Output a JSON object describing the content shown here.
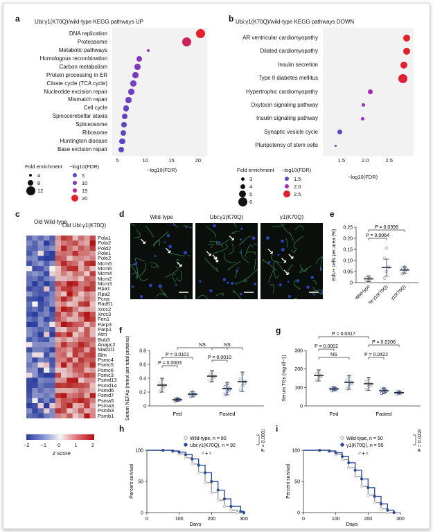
{
  "panels": {
    "a": "a",
    "b": "b",
    "c": "c",
    "d": "d",
    "e": "e",
    "f": "f",
    "g": "g",
    "h": "h",
    "i": "i"
  },
  "chart_data": [
    {
      "id": "a",
      "type": "scatter",
      "title": "Ubi:γ1(K70Q)/wild-type KEGG pathways UP",
      "xlabel": "−log10(FDR)",
      "xticks": [
        "5",
        "10",
        "15",
        "20"
      ],
      "xlim": [
        3.5,
        21.5
      ],
      "categories": [
        "DNA replication",
        "Proteasome",
        "Metabolic pathways",
        "Homologous recombination",
        "Carbon metabolism",
        "Protein processing in ER",
        "Citrate cycle (TCA cycle)",
        "Nucleotide excision repair",
        "Mismatch repair",
        "Cell cycle",
        "Spinocerebellar ataxia",
        "Spliceosome",
        "Ribosome",
        "Huntington disease",
        "Base excision repair"
      ],
      "x": [
        20.2,
        17.6,
        10.3,
        8.6,
        8.3,
        7.9,
        7.5,
        7.1,
        6.6,
        6.1,
        5.9,
        5.7,
        5.6,
        5.4,
        5.2
      ],
      "fold": [
        12,
        12,
        4,
        8,
        8,
        8,
        8,
        8,
        8,
        8,
        8,
        8,
        8,
        8,
        8
      ],
      "legend": {
        "size_title": "Fold enrichment",
        "size_items": [
          "4",
          "8",
          "12"
        ],
        "color_title": "−log10(FDR)",
        "color_items": [
          "5",
          "10",
          "15",
          "20"
        ]
      }
    },
    {
      "id": "b",
      "type": "scatter",
      "title": "Ubi:γ1(K70Q)/wild-type KEGG pathways DOWN",
      "xlabel": "−log10(FDR)",
      "xticks": [
        "1.5",
        "2.0",
        "2.5"
      ],
      "xlim": [
        1.1,
        3.0
      ],
      "categories": [
        "AR ventricular cardiomyopathy",
        "Dilated cardiomyopathy",
        "Insulin secretion",
        "Type II diabetes mellitus",
        "Hypertrophic cardiomyopathy",
        "Oxytocin signaling pathway",
        "Insulin signaling pathway",
        "Synaptic vesicle cycle",
        "Pluripotency of stem cells"
      ],
      "x": [
        2.85,
        2.85,
        2.8,
        2.78,
        2.1,
        1.95,
        1.93,
        1.45,
        1.37
      ],
      "fold": [
        5,
        5,
        5,
        6,
        4,
        3,
        3,
        4,
        2
      ],
      "legend": {
        "size_title": "Fold enrichment",
        "size_items": [
          "3",
          "4",
          "5",
          "6"
        ],
        "color_title": "−log10(FDR)",
        "color_items": [
          "1.5",
          "2.0",
          "2.5"
        ]
      }
    },
    {
      "id": "c",
      "type": "heatmap",
      "col_groups": [
        "Old Wild-type",
        "Old Ubi:γ1(K70Q)"
      ],
      "rows": [
        "Pola1",
        "Pola2",
        "Pold2",
        "Pole1",
        "Pole2",
        "Mcm5",
        "Mcm6",
        "Mcm4",
        "Mcm2",
        "Mcm3",
        "Rpa1",
        "Rpa2",
        "Pcna",
        "Rad51",
        "Xrcc2",
        "Xrcc3",
        "Fen1",
        "Parp3",
        "Parp1",
        "Atm",
        "Bub3",
        "Anapc2",
        "Mad2l1",
        "Blm",
        "Psmc4",
        "Psmc5",
        "Psmc6",
        "Psmc3",
        "Psmd13",
        "Psmd14",
        "Psmd6",
        "Psmd7",
        "Psma5",
        "Psma3",
        "Psmb3",
        "Psmb1"
      ],
      "scale_ticks": [
        "−2",
        "−1",
        "0",
        "1",
        "2"
      ],
      "scale_label": "z score"
    },
    {
      "id": "d",
      "type": "image",
      "labels": [
        "Wild-type",
        "Ubi:γ1(K70Q)",
        "γ1(K70Q)"
      ]
    },
    {
      "id": "e",
      "type": "scatter",
      "ylabel": "EdU+ cells per area (%)",
      "yticks": [
        "0",
        "0.05",
        "0.10",
        "0.15",
        "0.20",
        "0.25"
      ],
      "ylim": [
        0,
        0.25
      ],
      "categories": [
        "Wild-type",
        "Ubi:γ1(K70Q)",
        "γ1(K70Q)"
      ],
      "means": [
        0.017,
        0.068,
        0.057
      ],
      "sd": [
        0.012,
        0.038,
        0.015
      ],
      "points": [
        [
          0.005,
          0.012,
          0.018,
          0.022,
          0.028
        ],
        [
          0.02,
          0.05,
          0.07,
          0.11,
          0.155
        ],
        [
          0.04,
          0.05,
          0.06,
          0.065,
          0.07
        ]
      ],
      "annotations": [
        "P = 0.0064",
        "P = 0.0396"
      ]
    },
    {
      "id": "f",
      "type": "scatter",
      "ylabel": "Serum NEFAs (mmol per total proteins)",
      "yticks": [
        "0",
        "0.2",
        "0.4",
        "0.6",
        "0.8"
      ],
      "ylim": [
        0,
        0.8
      ],
      "groups": [
        "Fed",
        "Fasted"
      ],
      "means": [
        0.3,
        0.09,
        0.17,
        0.43,
        0.25,
        0.35
      ],
      "sd": [
        0.1,
        0.02,
        0.04,
        0.08,
        0.09,
        0.14
      ],
      "annotations": [
        "P = 0.0003",
        "P = 0.0101",
        "NS",
        "P = 0.0010",
        "NS"
      ]
    },
    {
      "id": "g",
      "type": "scatter",
      "ylabel": "Serum TGs (mg dl−1)",
      "yticks": [
        "0",
        "100",
        "200",
        "300"
      ],
      "ylim": [
        0,
        300
      ],
      "groups": [
        "Fed",
        "Fasted"
      ],
      "means": [
        165,
        92,
        128,
        120,
        82,
        72
      ],
      "sd": [
        30,
        10,
        38,
        35,
        15,
        8
      ],
      "annotations": [
        "P = 0.0317",
        "P = 0.0206",
        "P = 0.0002",
        "NS",
        "P = 0.0422"
      ]
    },
    {
      "id": "h",
      "type": "line",
      "ylabel": "Percent survival",
      "xlabel": "Days",
      "yticks": [
        "0",
        "50",
        "100"
      ],
      "xticks": [
        "0",
        "100",
        "200",
        "300"
      ],
      "series": [
        {
          "name": "Wild-type, n = 80",
          "x": [
            0,
            50,
            80,
            100,
            120,
            140,
            160,
            180,
            200,
            220,
            240,
            260,
            280
          ],
          "values": [
            100,
            100,
            98,
            94,
            88,
            78,
            64,
            48,
            32,
            20,
            10,
            4,
            0
          ]
        },
        {
          "name": "Ubi:γ1(K70Q), n = 92",
          "x": [
            0,
            50,
            80,
            100,
            120,
            140,
            160,
            180,
            200,
            220,
            240,
            260,
            290,
            300
          ],
          "values": [
            100,
            100,
            99,
            97,
            93,
            86,
            76,
            64,
            50,
            36,
            22,
            10,
            2,
            0
          ]
        }
      ],
      "pvalue": "P = 0.0002",
      "sex": "♂+♀"
    },
    {
      "id": "i",
      "type": "line",
      "ylabel": "Percent survival",
      "xlabel": "Days",
      "yticks": [
        "0",
        "50",
        "100"
      ],
      "xticks": [
        "0",
        "100",
        "200",
        "300"
      ],
      "series": [
        {
          "name": "Wild-type, n = 50",
          "x": [
            0,
            50,
            80,
            100,
            120,
            140,
            160,
            180,
            200,
            220,
            240,
            260
          ],
          "values": [
            100,
            100,
            98,
            93,
            85,
            72,
            58,
            42,
            28,
            16,
            6,
            0
          ]
        },
        {
          "name": "γ1(K70Q), n = 55",
          "x": [
            0,
            50,
            80,
            100,
            120,
            140,
            160,
            180,
            200,
            220,
            240,
            260,
            280
          ],
          "values": [
            100,
            100,
            99,
            96,
            90,
            80,
            68,
            54,
            40,
            26,
            14,
            4,
            0
          ]
        }
      ],
      "pvalue": "P = 0.0226",
      "sex": "♂+♀"
    }
  ]
}
